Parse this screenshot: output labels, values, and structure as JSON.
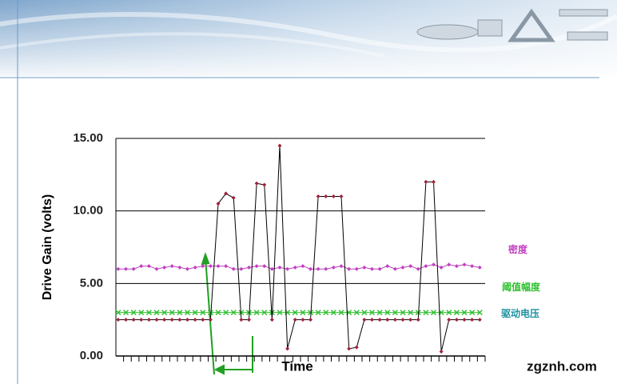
{
  "chart_data": {
    "type": "line",
    "ylabel": "Drive Gain (volts)",
    "xlabel": "Time",
    "categories": [
      null,
      null,
      null,
      null,
      null,
      null,
      null,
      null,
      null,
      null,
      null,
      null,
      null,
      null,
      null,
      null,
      null,
      null,
      null,
      null,
      null,
      null,
      null,
      null,
      null,
      null,
      null,
      null,
      null,
      null,
      null,
      null,
      null,
      null,
      null,
      null,
      null,
      null,
      null,
      null,
      null,
      null,
      null,
      null,
      null,
      null,
      null,
      null
    ],
    "series": [
      {
        "name": "密度",
        "color": "#c040c0",
        "line_color": "#c040c0",
        "label_color": "#c040c0",
        "values": [
          6.0,
          6.0,
          6.0,
          6.2,
          6.2,
          6.0,
          6.1,
          6.2,
          6.1,
          6.0,
          6.1,
          6.2,
          6.2,
          6.2,
          6.2,
          6.0,
          6.0,
          6.1,
          6.2,
          6.2,
          6.0,
          6.1,
          6.0,
          6.1,
          6.2,
          6.0,
          6.0,
          6.0,
          6.1,
          6.2,
          6.0,
          6.0,
          6.1,
          6.0,
          6.0,
          6.2,
          6.0,
          6.1,
          6.2,
          6.0,
          6.2,
          6.3,
          6.1,
          6.3,
          6.2,
          6.3,
          6.2,
          6.1
        ]
      },
      {
        "name": "阈值幅度",
        "color": "#30c030",
        "line_color": "#30c030",
        "label_color": "#30c030",
        "values": [
          3.0,
          3.0,
          3.0,
          3.0,
          3.0,
          3.0,
          3.0,
          3.0,
          3.0,
          3.0,
          3.0,
          3.0,
          3.0,
          3.0,
          3.0,
          3.0,
          3.0,
          3.0,
          3.0,
          3.0,
          3.0,
          3.0,
          3.0,
          3.0,
          3.0,
          3.0,
          3.0,
          3.0,
          3.0,
          3.0,
          3.0,
          3.0,
          3.0,
          3.0,
          3.0,
          3.0,
          3.0,
          3.0,
          3.0,
          3.0,
          3.0,
          3.0,
          3.0,
          3.0,
          3.0,
          3.0,
          3.0,
          3.0
        ]
      },
      {
        "name": "驱动电压",
        "color": "#a0203a",
        "line_color": "#000000",
        "label_color": "#2090a0",
        "values": [
          2.5,
          2.5,
          2.5,
          2.5,
          2.5,
          2.5,
          2.5,
          2.5,
          2.5,
          2.5,
          2.5,
          2.5,
          2.5,
          10.5,
          11.2,
          10.9,
          2.5,
          2.5,
          11.9,
          11.8,
          2.5,
          14.5,
          0.5,
          2.5,
          2.5,
          2.5,
          11.0,
          11.0,
          11.0,
          11.0,
          0.5,
          0.6,
          2.5,
          2.5,
          2.5,
          2.5,
          2.5,
          2.5,
          2.5,
          2.5,
          12.0,
          12.0,
          0.3,
          2.5,
          2.5,
          2.5,
          2.5,
          2.5
        ]
      }
    ],
    "ylim": [
      0,
      15
    ],
    "yticks": [
      {
        "value": 0,
        "label": "0.00"
      },
      {
        "value": 5,
        "label": "5.00"
      },
      {
        "value": 10,
        "label": "10.00"
      },
      {
        "value": 15,
        "label": "15.00"
      }
    ],
    "grid": true
  },
  "watermark": "zgznh.com"
}
